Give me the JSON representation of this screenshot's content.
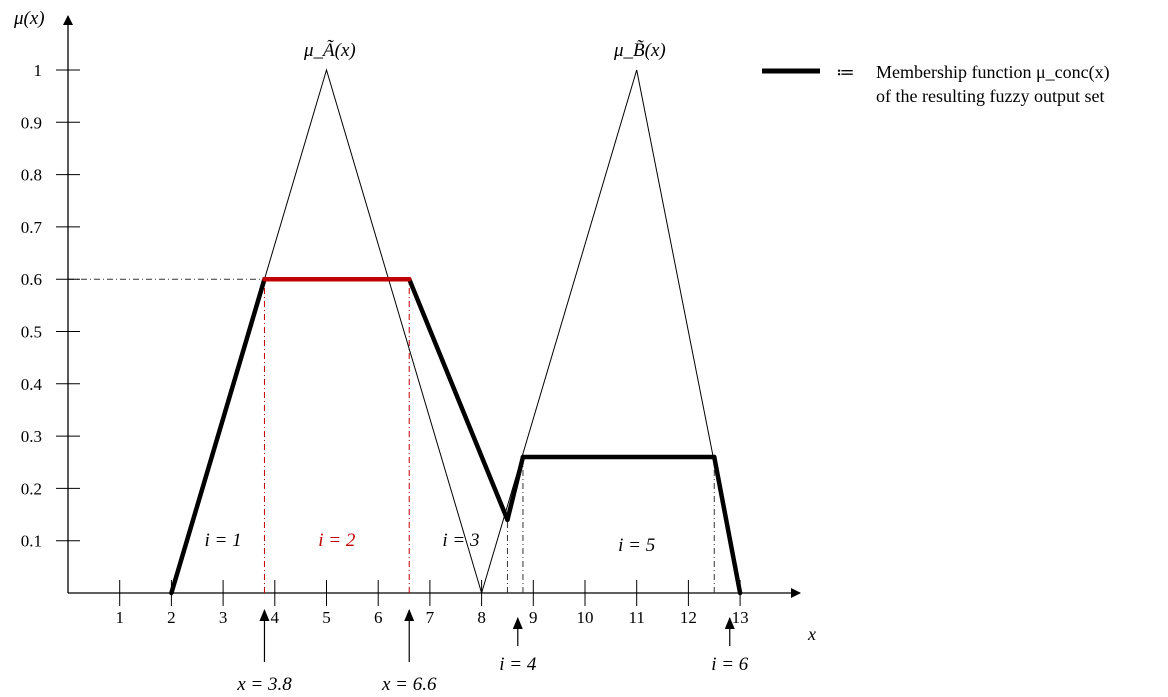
{
  "chart_data": {
    "type": "line",
    "title": "",
    "xlabel": "x",
    "ylabel": "μ(x)",
    "xlim": [
      0,
      14
    ],
    "ylim": [
      0,
      1
    ],
    "x_ticks": [
      1,
      2,
      3,
      4,
      5,
      6,
      7,
      8,
      9,
      10,
      11,
      12,
      13
    ],
    "y_ticks": [
      0.1,
      0.2,
      0.3,
      0.4,
      0.5,
      0.6,
      0.7,
      0.8,
      0.9,
      1
    ],
    "grid": false,
    "series": [
      {
        "name": "μ_Ã(x)",
        "x": [
          2,
          5,
          8
        ],
        "y": [
          0,
          1,
          0
        ]
      },
      {
        "name": "μ_B̃(x)",
        "x": [
          8,
          11,
          13
        ],
        "y": [
          0,
          1,
          0
        ]
      },
      {
        "name": "Membership function μ_conc(x) of the resulting fuzzy output set",
        "x": [
          2,
          3.8,
          6.6,
          8.5,
          8.8,
          12.5,
          13
        ],
        "y": [
          0,
          0.6,
          0.6,
          0.14,
          0.26,
          0.26,
          0
        ]
      }
    ],
    "highlight_segment": {
      "x": [
        3.8,
        6.6
      ],
      "y": [
        0.6,
        0.6
      ],
      "color": "#c00000"
    },
    "guide_lines": [
      {
        "kind": "horizontal",
        "y": 0.6,
        "x_from": 0,
        "x_to": 3.8,
        "color": "#333333"
      },
      {
        "kind": "vertical",
        "x": 3.8,
        "y_from": 0,
        "y_to": 0.6,
        "color": "#c00000"
      },
      {
        "kind": "vertical",
        "x": 6.6,
        "y_from": 0,
        "y_to": 0.6,
        "color": "#c00000"
      },
      {
        "kind": "vertical",
        "x": 8.5,
        "y_from": 0,
        "y_to": 0.14,
        "color": "#333333"
      },
      {
        "kind": "vertical",
        "x": 8.8,
        "y_from": 0,
        "y_to": 0.26,
        "color": "#333333"
      },
      {
        "kind": "vertical",
        "x": 12.5,
        "y_from": 0,
        "y_to": 0.26,
        "color": "#333333"
      }
    ],
    "region_labels": [
      {
        "text": "i = 1",
        "x": 3,
        "y": 0.09,
        "color": "#000000"
      },
      {
        "text": "i = 2",
        "x": 5.2,
        "y": 0.09,
        "color": "#c00000"
      },
      {
        "text": "i = 3",
        "x": 7.6,
        "y": 0.09,
        "color": "#000000"
      },
      {
        "text": "i = 5",
        "x": 11,
        "y": 0.08,
        "color": "#000000"
      }
    ],
    "arrow_annotations": [
      {
        "text": "x = 3.8",
        "x": 3.8
      },
      {
        "text": "x = 6.6",
        "x": 6.6
      },
      {
        "text": "i = 4",
        "x": 8.7
      },
      {
        "text": "i = 6",
        "x": 12.8
      }
    ],
    "legend": {
      "placement": "top-right",
      "symbol": "≔",
      "line1": "Membership function μ_conc(x)",
      "line2": "of the resulting fuzzy output set"
    },
    "colors": {
      "line": "#000000",
      "highlight": "#c00000",
      "guide": "#333333"
    }
  }
}
